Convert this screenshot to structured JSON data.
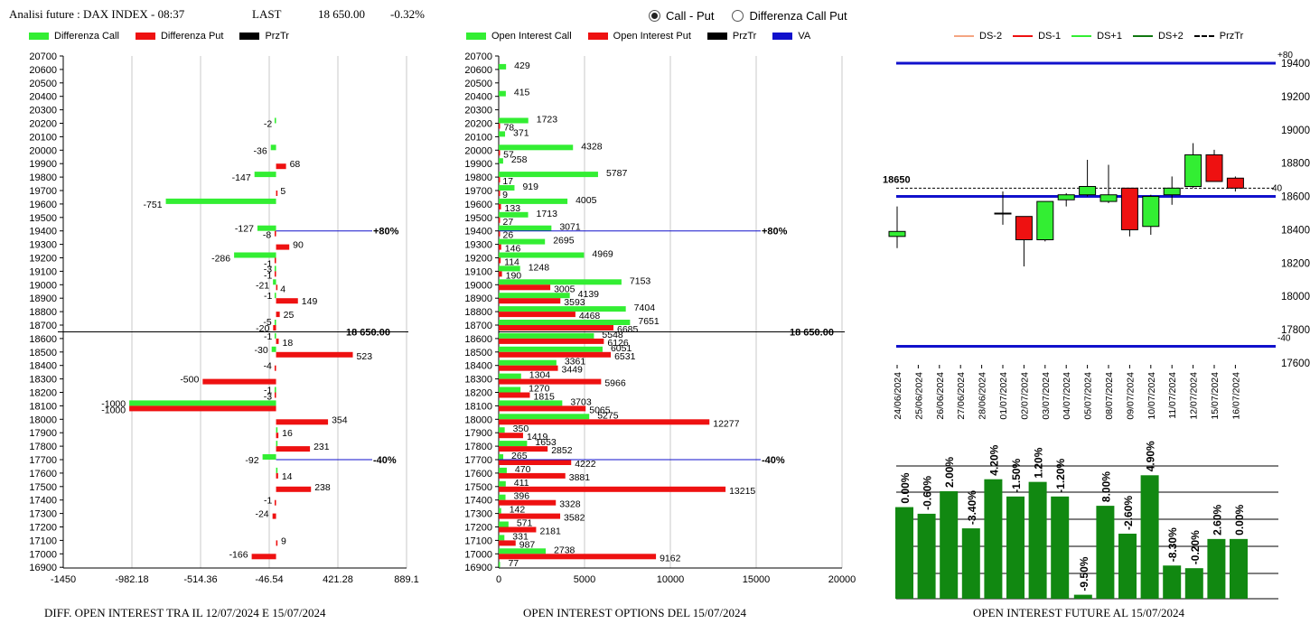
{
  "header": {
    "title": "Analisi future : DAX INDEX - 08:37",
    "last_label": "LAST",
    "last_value": "18 650.00",
    "change": "-0.32%"
  },
  "mode_selector": {
    "options": [
      {
        "label": "Call - Put",
        "selected": true
      },
      {
        "label": "Differenza Call Put",
        "selected": false
      }
    ]
  },
  "colors": {
    "call": "#33EE33",
    "put": "#EE1111",
    "bar_green": "#118811",
    "va_line": "#1111CC",
    "dark_green": "#117711"
  },
  "legends": {
    "diff": [
      {
        "label": "Differenza Call",
        "color": "#33EE33"
      },
      {
        "label": "Differenza Put",
        "color": "#EE1111"
      },
      {
        "label": "PrzTr",
        "color": "#000000"
      }
    ],
    "oi": [
      {
        "label": "Open Interest Call",
        "color": "#33EE33"
      },
      {
        "label": "Open Interest Put",
        "color": "#EE1111"
      },
      {
        "label": "PrzTr",
        "color": "#000000"
      },
      {
        "label": "VA",
        "color": "#1111CC"
      }
    ],
    "future": [
      {
        "label": "DS-2",
        "color": "#F4A582",
        "style": "solid"
      },
      {
        "label": "DS-1",
        "color": "#EE1111",
        "style": "solid"
      },
      {
        "label": "DS+1",
        "color": "#33EE33",
        "style": "solid"
      },
      {
        "label": "DS+2",
        "color": "#117711",
        "style": "solid"
      },
      {
        "label": "PrzTr",
        "color": "#000000",
        "style": "dashed"
      }
    ]
  },
  "footers": {
    "diff": "DIFF. OPEN INTEREST TRA IL 12/07/2024 E 15/07/2024",
    "oi": "OPEN INTEREST OPTIONS DEL 15/07/2024",
    "future": "OPEN INTEREST FUTURE AL 15/07/2024"
  },
  "chart_data": [
    {
      "type": "bar",
      "orientation": "horizontal",
      "strikes": [
        20700,
        20600,
        20500,
        20400,
        20300,
        20200,
        20100,
        20000,
        19900,
        19800,
        19700,
        19600,
        19500,
        19400,
        19300,
        19200,
        19100,
        19000,
        18900,
        18800,
        18700,
        18600,
        18500,
        18400,
        18300,
        18200,
        18100,
        18000,
        17900,
        17800,
        17700,
        17600,
        17500,
        17400,
        17300,
        17200,
        17100,
        17000,
        16900
      ],
      "series": [
        {
          "name": "Differenza Call",
          "values": {
            "20200": -2,
            "20000": -36,
            "19800": -147,
            "19600": -751,
            "19400": -127,
            "19200": -286,
            "19100": -3,
            "19000": -21,
            "18900": -1,
            "18700": -5,
            "18600": -1,
            "18500": -30,
            "18200": -1,
            "18100": -1000,
            "17900": 1,
            "17800": 1,
            "17700": -92,
            "17600": 1
          }
        },
        {
          "name": "Differenza Put",
          "values": {
            "19900": 68,
            "19700": 5,
            "19400": -8,
            "19300": 90,
            "19200": -1,
            "19100": -1,
            "19000": 4,
            "18900": 149,
            "18800": 25,
            "18700": -20,
            "18600": 18,
            "18500": 523,
            "18400": -4,
            "18300": -500,
            "18200": -3,
            "18100": -1000,
            "18000": 354,
            "17900": 16,
            "17800": 231,
            "17600": 14,
            "17500": 238,
            "17400": -1,
            "17300": -24,
            "17100": 9,
            "17000": -166
          }
        }
      ],
      "labels": [
        {
          "strike": 20200,
          "side": "neg",
          "text": "-2"
        },
        {
          "strike": 20000,
          "side": "neg",
          "text": "-36"
        },
        {
          "strike": 19900,
          "side": "pos",
          "text": "68"
        },
        {
          "strike": 19800,
          "side": "neg",
          "text": "-147"
        },
        {
          "strike": 19700,
          "side": "pos",
          "text": "5"
        },
        {
          "strike": 19600,
          "side": "neg",
          "text": "-751"
        },
        {
          "strike": 19400,
          "side": "neg",
          "text": "-127",
          "dy": -3
        },
        {
          "strike": 19400,
          "side": "neg",
          "text": "-8",
          "dy": 4
        },
        {
          "strike": 19300,
          "side": "pos",
          "text": "90"
        },
        {
          "strike": 19200,
          "side": "neg",
          "text": "-286"
        },
        {
          "strike": 19200,
          "side": "neg",
          "text": "-1",
          "dy": 6
        },
        {
          "strike": 19100,
          "side": "neg",
          "text": "-3",
          "dy": -3
        },
        {
          "strike": 19100,
          "side": "neg",
          "text": "-1",
          "dy": 4
        },
        {
          "strike": 19000,
          "side": "neg",
          "text": "-21"
        },
        {
          "strike": 19000,
          "side": "pos",
          "text": "4",
          "dy": 4
        },
        {
          "strike": 18900,
          "side": "neg",
          "text": "-1",
          "dy": -3
        },
        {
          "strike": 18900,
          "side": "pos",
          "text": "149",
          "dy": 3
        },
        {
          "strike": 18800,
          "side": "pos",
          "text": "25",
          "dy": 3
        },
        {
          "strike": 18700,
          "side": "neg",
          "text": "-5",
          "dy": -4
        },
        {
          "strike": 18700,
          "side": "neg",
          "text": "-20",
          "dy": 3
        },
        {
          "strike": 18600,
          "side": "neg",
          "text": "-1",
          "dy": -3
        },
        {
          "strike": 18600,
          "side": "pos",
          "text": "18",
          "dy": 4
        },
        {
          "strike": 18500,
          "side": "neg",
          "text": "-30",
          "dy": -3
        },
        {
          "strike": 18500,
          "side": "pos",
          "text": "523",
          "dy": 4
        },
        {
          "strike": 18400,
          "side": "neg",
          "text": "-4"
        },
        {
          "strike": 18300,
          "side": "neg",
          "text": "-500"
        },
        {
          "strike": 18200,
          "side": "neg",
          "text": "-1",
          "dy": -3
        },
        {
          "strike": 18200,
          "side": "neg",
          "text": "-3",
          "dy": 4
        },
        {
          "strike": 18100,
          "side": "neg",
          "text": "-1000",
          "dy": -3
        },
        {
          "strike": 18100,
          "side": "neg",
          "text": "-1000",
          "dy": 4
        },
        {
          "strike": 18000,
          "side": "pos",
          "text": "354"
        },
        {
          "strike": 17900,
          "side": "pos",
          "text": "16"
        },
        {
          "strike": 17800,
          "side": "pos",
          "text": "231"
        },
        {
          "strike": 17700,
          "side": "neg",
          "text": "-92"
        },
        {
          "strike": 17600,
          "side": "pos",
          "text": "14",
          "dy": 3
        },
        {
          "strike": 17500,
          "side": "pos",
          "text": "238"
        },
        {
          "strike": 17400,
          "side": "neg",
          "text": "-1"
        },
        {
          "strike": 17300,
          "side": "neg",
          "text": "-24"
        },
        {
          "strike": 17100,
          "side": "pos",
          "text": "9"
        },
        {
          "strike": 17000,
          "side": "neg",
          "text": "-166"
        }
      ],
      "x_ticks": [
        "-1450",
        "-982.18",
        "-514.36",
        "-46.54",
        "421.28",
        "889.1"
      ],
      "xlim": [
        -1450,
        889.1
      ],
      "reference_lines": [
        {
          "strike": 19400,
          "label": "+80%"
        },
        {
          "strike": 17700,
          "label": "-40%"
        }
      ],
      "price_line": {
        "strike": 18650,
        "label": "18 650.00"
      }
    },
    {
      "type": "bar",
      "orientation": "horizontal",
      "strikes": [
        20700,
        20600,
        20500,
        20400,
        20300,
        20200,
        20100,
        20000,
        19900,
        19800,
        19700,
        19600,
        19500,
        19400,
        19300,
        19200,
        19100,
        19000,
        18900,
        18800,
        18700,
        18600,
        18500,
        18400,
        18300,
        18200,
        18100,
        18000,
        17900,
        17800,
        17700,
        17600,
        17500,
        17400,
        17300,
        17200,
        17100,
        17000,
        16900
      ],
      "series": [
        {
          "name": "Open Interest Call",
          "values": [
            0,
            429,
            0,
            415,
            0,
            1723,
            371,
            4328,
            258,
            5787,
            919,
            4005,
            1713,
            3071,
            2695,
            4969,
            1248,
            7153,
            4139,
            7404,
            7651,
            5548,
            6051,
            3361,
            1304,
            1270,
            3703,
            5275,
            350,
            1653,
            265,
            470,
            411,
            396,
            142,
            571,
            331,
            2738,
            77
          ]
        },
        {
          "name": "Open Interest Put",
          "values": [
            0,
            0,
            0,
            0,
            0,
            78,
            0,
            57,
            0,
            17,
            9,
            133,
            27,
            26,
            146,
            114,
            190,
            3005,
            3593,
            4468,
            6685,
            6126,
            6531,
            3449,
            5966,
            1815,
            5065,
            12277,
            1419,
            2852,
            4222,
            3881,
            13215,
            3328,
            3582,
            2181,
            987,
            9162,
            0
          ]
        }
      ],
      "x_ticks": [
        "0",
        "5000",
        "10000",
        "15000",
        "20000"
      ],
      "xlim": [
        0,
        20000
      ],
      "reference_lines": [
        {
          "strike": 19400,
          "label": "+80%"
        },
        {
          "strike": 17700,
          "label": "-40%"
        }
      ],
      "price_line": {
        "strike": 18650,
        "label": "18 650.00"
      }
    },
    {
      "type": "candlestick",
      "dates": [
        "24/06/2024",
        "25/06/2024",
        "26/06/2024",
        "27/06/2024",
        "28/06/2024",
        "01/07/2024",
        "02/07/2024",
        "03/07/2024",
        "04/07/2024",
        "05/07/2024",
        "08/07/2024",
        "09/07/2024",
        "10/07/2024",
        "11/07/2024",
        "12/07/2024",
        "15/07/2024",
        "16/07/2024"
      ],
      "candles": [
        {
          "date": "24/06/2024",
          "open": 18360,
          "high": 18540,
          "low": 18290,
          "close": 18390
        },
        {
          "date": "01/07/2024",
          "open": 18500,
          "high": 18630,
          "low": 18430,
          "close": 18500
        },
        {
          "date": "02/07/2024",
          "open": 18480,
          "high": 18480,
          "low": 18180,
          "close": 18340
        },
        {
          "date": "03/07/2024",
          "open": 18340,
          "high": 18570,
          "low": 18330,
          "close": 18570
        },
        {
          "date": "04/07/2024",
          "open": 18580,
          "high": 18620,
          "low": 18540,
          "close": 18610
        },
        {
          "date": "05/07/2024",
          "open": 18610,
          "high": 18820,
          "low": 18600,
          "close": 18660
        },
        {
          "date": "08/07/2024",
          "open": 18570,
          "high": 18790,
          "low": 18560,
          "close": 18610
        },
        {
          "date": "09/07/2024",
          "open": 18650,
          "high": 18650,
          "low": 18360,
          "close": 18400
        },
        {
          "date": "10/07/2024",
          "open": 18420,
          "high": 18610,
          "low": 18370,
          "close": 18600
        },
        {
          "date": "11/07/2024",
          "open": 18610,
          "high": 18720,
          "low": 18550,
          "close": 18650
        },
        {
          "date": "12/07/2024",
          "open": 18660,
          "high": 18920,
          "low": 18650,
          "close": 18850
        },
        {
          "date": "15/07/2024",
          "open": 18850,
          "high": 18880,
          "low": 18700,
          "close": 18690
        },
        {
          "date": "16/07/2024",
          "open": 18710,
          "high": 18720,
          "low": 18630,
          "close": 18650
        }
      ],
      "y_ticks": [
        "17600",
        "17800",
        "18000",
        "18200",
        "18400",
        "18600",
        "18800",
        "19000",
        "19200",
        "19400"
      ],
      "ylim": [
        17600,
        19400
      ],
      "price_line": {
        "value": 18650,
        "label": "18650",
        "right_label": "40"
      },
      "levels": [
        {
          "value": 19400,
          "label": "+80"
        },
        {
          "value": 18600,
          "label": ""
        },
        {
          "value": 17700,
          "label": "-40"
        }
      ]
    },
    {
      "type": "bar",
      "labels": [
        "0.00%",
        "-0.60%",
        "2.00%",
        "-3.40%",
        "4.20%",
        "-1.50%",
        "1.20%",
        "-1.20%",
        "-9.50%",
        "8.00%",
        "-2.60%",
        "4.90%",
        "-8.30%",
        "-0.20%",
        "2.60%",
        "0.00%"
      ],
      "relative_heights": [
        0.69,
        0.64,
        0.81,
        0.53,
        0.9,
        0.77,
        0.88,
        0.77,
        0.03,
        0.7,
        0.49,
        0.93,
        0.25,
        0.23,
        0.45,
        0.45
      ]
    }
  ]
}
